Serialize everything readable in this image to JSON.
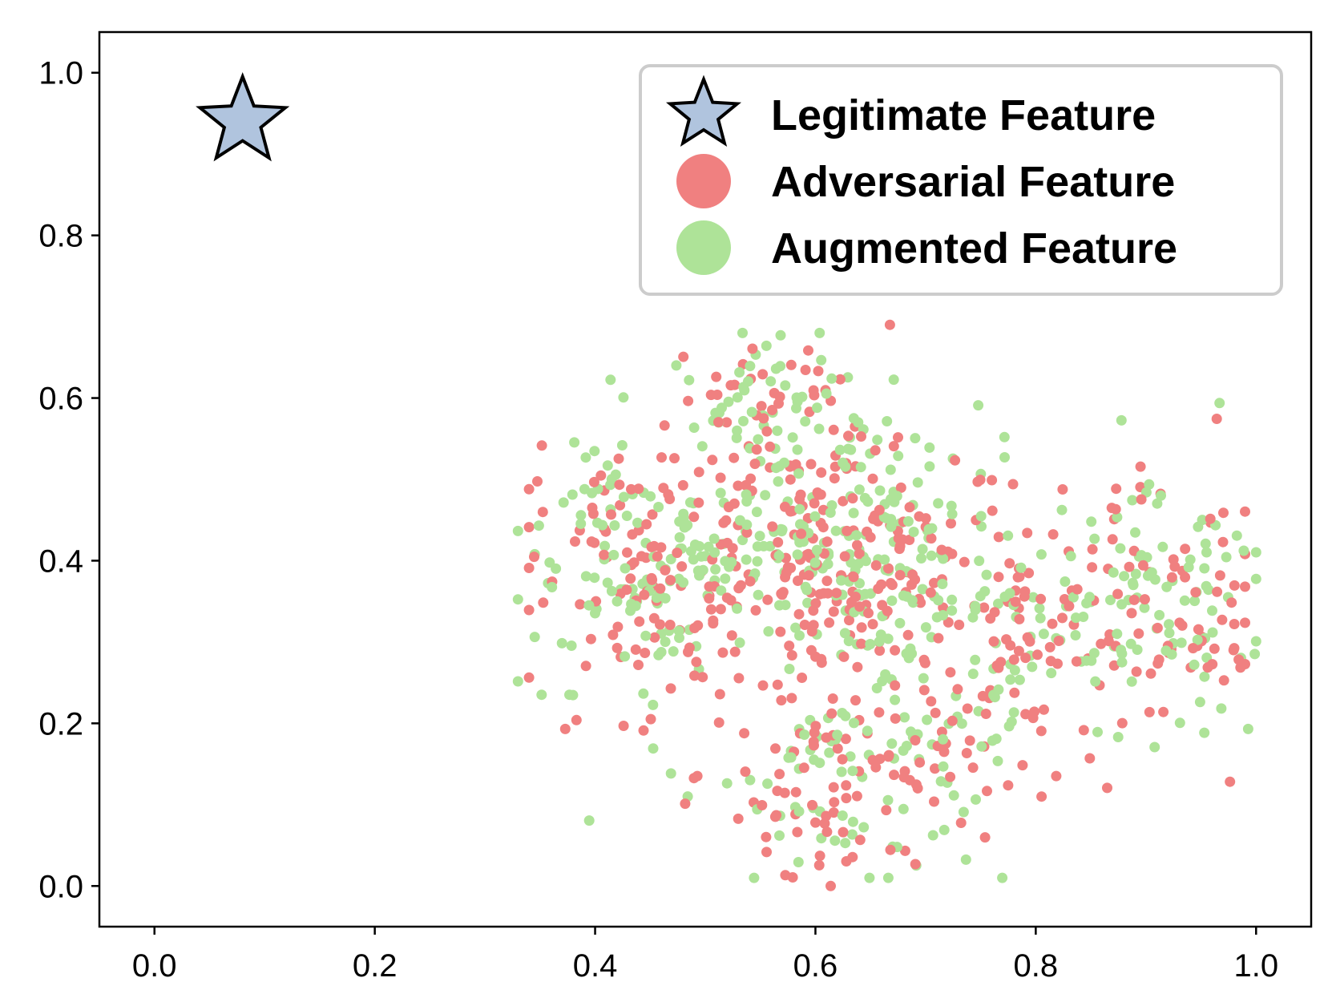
{
  "chart_data": {
    "type": "scatter",
    "title": "",
    "xlabel": "",
    "ylabel": "",
    "xlim": [
      -0.05,
      1.05
    ],
    "ylim": [
      -0.05,
      1.05
    ],
    "x_ticks": [
      "0.0",
      "0.2",
      "0.4",
      "0.6",
      "0.8",
      "1.0"
    ],
    "y_ticks": [
      "0.0",
      "0.2",
      "0.4",
      "0.6",
      "0.8",
      "1.0"
    ],
    "grid": false,
    "legend": {
      "position": "top-right",
      "entries": [
        {
          "label": "Legitimate Feature",
          "marker": "star",
          "color": "#b0c4de"
        },
        {
          "label": "Adversarial Feature",
          "marker": "circle",
          "color": "#f08080"
        },
        {
          "label": "Augmented Feature",
          "marker": "circle",
          "color": "#aee398"
        }
      ]
    },
    "series": [
      {
        "name": "Legitimate Feature",
        "marker": "star",
        "color": "#b0c4de",
        "points": [
          [
            0.08,
            0.94
          ]
        ]
      },
      {
        "name": "Adversarial Feature",
        "marker": "circle",
        "color": "#f08080",
        "cluster": {
          "x_range": [
            0.34,
            0.99
          ],
          "y_range": [
            0.0,
            0.69
          ],
          "count": 600
        }
      },
      {
        "name": "Augmented Feature",
        "marker": "circle",
        "color": "#aee398",
        "cluster": {
          "x_range": [
            0.33,
            1.0
          ],
          "y_range": [
            0.01,
            0.68
          ],
          "count": 600
        }
      }
    ]
  }
}
